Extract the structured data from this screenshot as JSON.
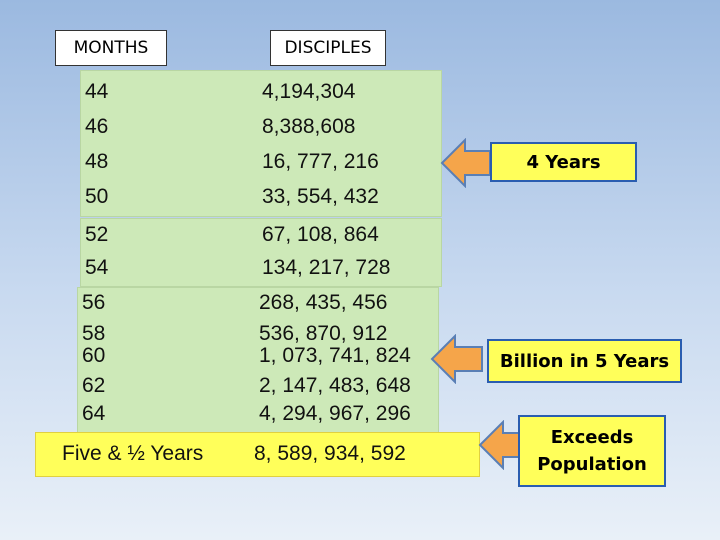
{
  "headers": {
    "months": "MONTHS",
    "disciples": "DISCIPLES"
  },
  "groups": [
    {
      "rows": [
        [
          "44",
          "4,194,304"
        ],
        [
          "46",
          "8,388,608"
        ],
        [
          "48",
          "16, 777, 216"
        ],
        [
          "50",
          "33, 554, 432"
        ]
      ]
    },
    {
      "rows": [
        [
          "52",
          "67, 108, 864"
        ],
        [
          "54",
          "134, 217, 728"
        ]
      ]
    },
    {
      "rows": [
        [
          "56",
          "268, 435, 456"
        ],
        [
          "58",
          "536, 870, 912"
        ],
        [
          "60",
          "1, 073, 741, 824"
        ],
        [
          "62",
          "2, 147, 483, 648"
        ],
        [
          "64",
          "4, 294, 967, 296"
        ]
      ]
    }
  ],
  "final_row": [
    "Five & ½ Years",
    "8, 589, 934, 592"
  ],
  "callouts": [
    "4 Years",
    "Billion in 5 Years",
    "Exceeds Population"
  ]
}
